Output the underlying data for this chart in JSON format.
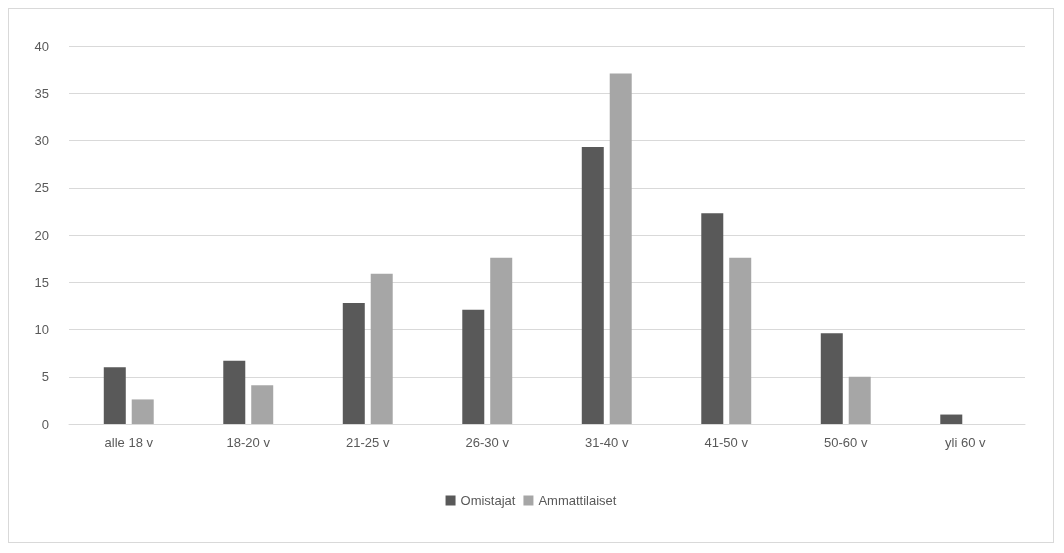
{
  "chart_data": {
    "type": "bar",
    "categories": [
      "alle 18 v",
      "18-20 v",
      "21-25 v",
      "26-30 v",
      "31-40 v",
      "41-50 v",
      "50-60 v",
      "yli 60 v"
    ],
    "series": [
      {
        "name": "Omistajat",
        "color": "#595959",
        "values": [
          6,
          6.7,
          12.8,
          12.1,
          29.3,
          22.3,
          9.6,
          1
        ]
      },
      {
        "name": "Ammattilaiset",
        "color": "#a6a6a6",
        "values": [
          2.6,
          4.1,
          15.9,
          17.6,
          37.1,
          17.6,
          5,
          0
        ]
      }
    ],
    "ylim": [
      0,
      40
    ],
    "yticks": [
      0,
      5,
      10,
      15,
      20,
      25,
      30,
      35,
      40
    ],
    "grid": "y",
    "legend": "bottom"
  }
}
